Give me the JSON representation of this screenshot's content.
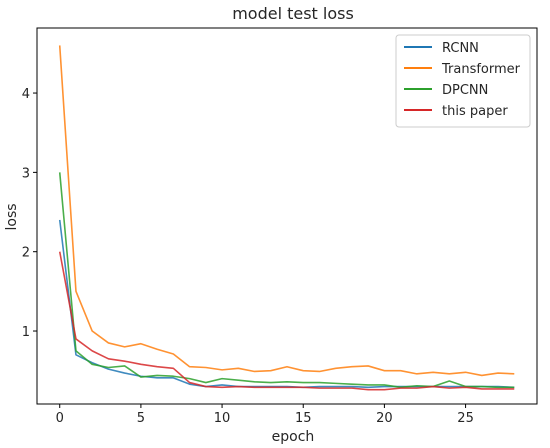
{
  "chart_data": {
    "type": "line",
    "title": "model test loss",
    "xlabel": "epoch",
    "ylabel": "loss",
    "xlim": [
      -1.4,
      29.4
    ],
    "ylim": [
      0.08,
      4.82
    ],
    "xticks": [
      0,
      5,
      10,
      15,
      20,
      25
    ],
    "yticks": [
      1,
      2,
      3,
      4
    ],
    "grid": false,
    "legend_position": "top-right",
    "x": [
      0,
      1,
      2,
      3,
      4,
      5,
      6,
      7,
      8,
      9,
      10,
      11,
      12,
      13,
      14,
      15,
      16,
      17,
      18,
      19,
      20,
      21,
      22,
      23,
      24,
      25,
      26,
      27,
      28
    ],
    "series": [
      {
        "name": "RCNN",
        "color": "#1f77b4",
        "values": [
          2.4,
          0.7,
          0.6,
          0.52,
          0.47,
          0.43,
          0.41,
          0.41,
          0.33,
          0.3,
          0.32,
          0.3,
          0.3,
          0.3,
          0.3,
          0.29,
          0.3,
          0.3,
          0.3,
          0.29,
          0.3,
          0.3,
          0.3,
          0.3,
          0.3,
          0.3,
          0.3,
          0.3,
          0.29
        ]
      },
      {
        "name": "Transformer",
        "color": "#ff7f0e",
        "values": [
          4.6,
          1.5,
          1.0,
          0.85,
          0.8,
          0.84,
          0.77,
          0.71,
          0.55,
          0.54,
          0.51,
          0.53,
          0.49,
          0.5,
          0.55,
          0.5,
          0.49,
          0.53,
          0.55,
          0.56,
          0.5,
          0.5,
          0.46,
          0.48,
          0.46,
          0.48,
          0.44,
          0.47,
          0.46
        ]
      },
      {
        "name": "DPCNN",
        "color": "#2ca02c",
        "values": [
          3.0,
          0.75,
          0.58,
          0.54,
          0.56,
          0.42,
          0.44,
          0.43,
          0.4,
          0.35,
          0.4,
          0.38,
          0.36,
          0.35,
          0.36,
          0.35,
          0.35,
          0.34,
          0.33,
          0.32,
          0.32,
          0.29,
          0.31,
          0.3,
          0.37,
          0.3,
          0.3,
          0.29,
          0.29
        ]
      },
      {
        "name": "this paper",
        "color": "#d62728",
        "values": [
          2.0,
          0.9,
          0.75,
          0.65,
          0.62,
          0.58,
          0.55,
          0.53,
          0.35,
          0.3,
          0.29,
          0.3,
          0.29,
          0.29,
          0.29,
          0.29,
          0.28,
          0.28,
          0.28,
          0.26,
          0.26,
          0.28,
          0.28,
          0.3,
          0.28,
          0.29,
          0.27,
          0.27,
          0.27
        ]
      }
    ]
  }
}
